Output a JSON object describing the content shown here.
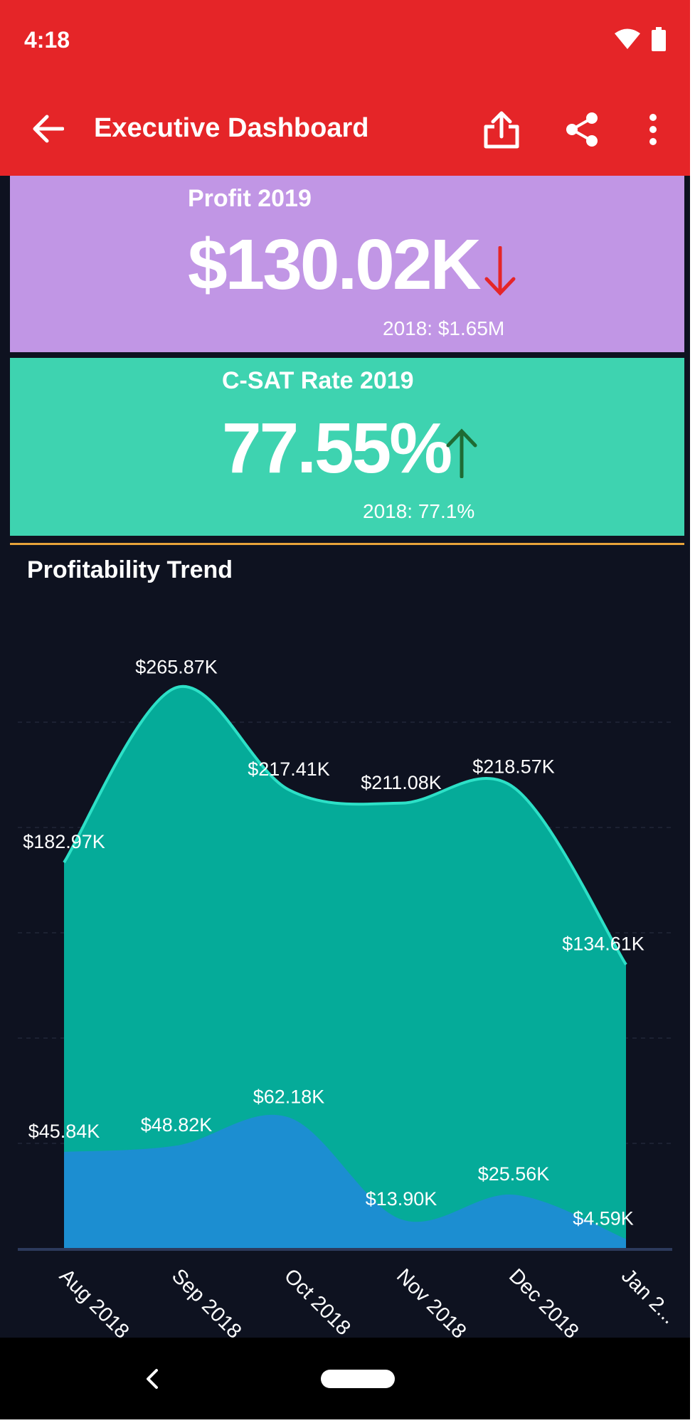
{
  "status_bar": {
    "time": "4:18",
    "icons": [
      "wifi-icon",
      "battery-icon"
    ]
  },
  "toolbar": {
    "title": "Executive Dashboard",
    "back_icon": "arrow-left-icon",
    "actions": [
      "export-icon",
      "share-icon",
      "more-vert-icon"
    ],
    "background": "#e52528"
  },
  "kpis": {
    "profit": {
      "title": "Profit 2019",
      "value": "$130.02K",
      "trend": "down",
      "trend_color": "#e52528",
      "compare": "2018: $1.65M",
      "background": "#c196e5"
    },
    "csat": {
      "title": "C-SAT Rate 2019",
      "value": "77.55%",
      "trend": "up",
      "trend_color": "#1f6b34",
      "compare": "2018: 77.1%",
      "background": "#3ed3b0"
    }
  },
  "chart_data": {
    "type": "area",
    "title": "Profitability Trend",
    "categories": [
      "Aug 2018",
      "Sep 2018",
      "Oct 2018",
      "Nov 2018",
      "Dec 2018",
      "Jan 2..."
    ],
    "series": [
      {
        "values": [
          182.97,
          265.87,
          217.41,
          211.08,
          218.57,
          134.61
        ],
        "labels": [
          "$182.97K",
          "$265.87K",
          "$217.41K",
          "$211.08K",
          "$218.57K",
          "$134.61K"
        ],
        "color": "#05ab99",
        "line_color": "#2de0c7"
      },
      {
        "values": [
          45.84,
          48.82,
          62.18,
          13.9,
          25.56,
          4.59
        ],
        "labels": [
          "$45.84K",
          "$48.82K",
          "$62.18K",
          "$13.90K",
          "$25.56K",
          "$4.59K"
        ],
        "color": "#1c8ed1"
      }
    ],
    "ylim": [
      0,
      300
    ],
    "grid": true,
    "background": "#0e1220"
  },
  "navigation": {
    "back_icon": "nav-back-icon",
    "home_icon": "home-pill-icon"
  }
}
